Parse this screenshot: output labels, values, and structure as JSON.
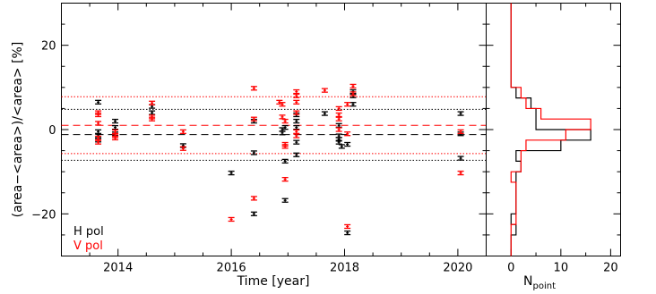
{
  "chart_data": [
    {
      "type": "scatter",
      "panel": "main",
      "xlabel": "Time [year]",
      "ylabel": "(area−<area>)/<area> [%]",
      "xlim": [
        2013.0,
        2020.5
      ],
      "ylim": [
        -30,
        30
      ],
      "xticks": [
        2014,
        2016,
        2018,
        2020
      ],
      "yticks": [
        -20,
        0,
        20
      ],
      "legend": {
        "placement": "bottom-left",
        "entries": [
          "H pol",
          "V pol"
        ]
      },
      "colors": {
        "H": "#000000",
        "V": "#ff0000"
      },
      "reference_lines": [
        {
          "series": "H pol",
          "style": "dashed",
          "y": -1.2
        },
        {
          "series": "V pol",
          "style": "dashed",
          "y": 1.0
        },
        {
          "series": "H pol",
          "style": "dotted",
          "y": 4.8
        },
        {
          "series": "H pol",
          "style": "dotted",
          "y": -7.3
        },
        {
          "series": "V pol",
          "style": "dotted",
          "y": 7.8
        },
        {
          "series": "V pol",
          "style": "dotted",
          "y": -5.7
        }
      ],
      "series": [
        {
          "name": "H pol",
          "points": [
            [
              2013.65,
              6.5
            ],
            [
              2013.65,
              -0.5
            ],
            [
              2013.65,
              -1.5
            ],
            [
              2013.65,
              -2.5
            ],
            [
              2013.95,
              2.0
            ],
            [
              2013.95,
              0.5
            ],
            [
              2013.95,
              -1.0
            ],
            [
              2014.6,
              4.0
            ],
            [
              2014.6,
              5.5
            ],
            [
              2015.15,
              -3.8
            ],
            [
              2016.0,
              -10.3
            ],
            [
              2016.4,
              -5.5
            ],
            [
              2016.4,
              -20.0
            ],
            [
              2016.4,
              2.0
            ],
            [
              2016.9,
              0.0
            ],
            [
              2016.9,
              -0.8
            ],
            [
              2016.95,
              -16.8
            ],
            [
              2016.95,
              -7.5
            ],
            [
              2016.95,
              0.5
            ],
            [
              2017.15,
              3.5
            ],
            [
              2017.15,
              2.0
            ],
            [
              2017.15,
              0.5
            ],
            [
              2017.15,
              -3.0
            ],
            [
              2017.15,
              -6.0
            ],
            [
              2017.65,
              3.8
            ],
            [
              2017.9,
              -1.5
            ],
            [
              2017.9,
              -2.3
            ],
            [
              2017.9,
              -3.0
            ],
            [
              2017.9,
              1.0
            ],
            [
              2017.95,
              -4.0
            ],
            [
              2018.05,
              -24.5
            ],
            [
              2018.05,
              -3.5
            ],
            [
              2018.15,
              9.0
            ],
            [
              2018.15,
              8.0
            ],
            [
              2018.15,
              6.0
            ],
            [
              2020.05,
              3.8
            ],
            [
              2020.05,
              -6.8
            ],
            [
              2020.05,
              -1.0
            ]
          ]
        },
        {
          "name": "V pol",
          "points": [
            [
              2013.65,
              4.0
            ],
            [
              2013.65,
              3.5
            ],
            [
              2013.65,
              1.5
            ],
            [
              2013.65,
              -2.0
            ],
            [
              2013.65,
              -3.0
            ],
            [
              2013.95,
              -0.5
            ],
            [
              2013.95,
              -1.5
            ],
            [
              2013.95,
              -2.0
            ],
            [
              2014.6,
              6.3
            ],
            [
              2014.6,
              3.0
            ],
            [
              2014.6,
              2.5
            ],
            [
              2015.15,
              -0.5
            ],
            [
              2015.15,
              -4.5
            ],
            [
              2016.0,
              -21.3
            ],
            [
              2016.4,
              9.8
            ],
            [
              2016.4,
              2.5
            ],
            [
              2016.4,
              -16.3
            ],
            [
              2016.85,
              6.5
            ],
            [
              2016.9,
              6.0
            ],
            [
              2016.9,
              3.0
            ],
            [
              2016.95,
              2.0
            ],
            [
              2016.95,
              -3.5
            ],
            [
              2016.95,
              -4.0
            ],
            [
              2016.95,
              -11.8
            ],
            [
              2017.15,
              9.0
            ],
            [
              2017.15,
              8.0
            ],
            [
              2017.15,
              6.5
            ],
            [
              2017.15,
              4.0
            ],
            [
              2017.15,
              -0.5
            ],
            [
              2017.15,
              -1.5
            ],
            [
              2017.65,
              9.3
            ],
            [
              2017.9,
              5.0
            ],
            [
              2017.9,
              3.5
            ],
            [
              2017.9,
              2.5
            ],
            [
              2017.9,
              0.0
            ],
            [
              2018.05,
              6.0
            ],
            [
              2018.05,
              -23.0
            ],
            [
              2018.05,
              -1.0
            ],
            [
              2018.15,
              10.3
            ],
            [
              2018.15,
              8.5
            ],
            [
              2020.05,
              -10.3
            ],
            [
              2020.05,
              -0.5
            ]
          ]
        }
      ]
    },
    {
      "type": "histogram",
      "panel": "side",
      "orientation": "horizontal",
      "xlabel": "N",
      "xlabel_sub": "point",
      "xlim": [
        -5,
        22
      ],
      "ylim": [
        -30,
        30
      ],
      "xticks": [
        0,
        10,
        20
      ],
      "colors": {
        "H": "#000000",
        "V": "#ff0000"
      },
      "bin_edges": [
        -30,
        -27.5,
        -25,
        -22.5,
        -20,
        -17.5,
        -15,
        -12.5,
        -10,
        -7.5,
        -5,
        -2.5,
        0,
        2.5,
        5,
        7.5,
        10,
        12.5,
        15,
        17.5,
        20,
        22.5,
        25,
        27.5,
        30
      ],
      "series": [
        {
          "name": "H pol",
          "counts": [
            0,
            0,
            1,
            0,
            1,
            1,
            1,
            1,
            2,
            1,
            10,
            16,
            5,
            5,
            4,
            1,
            0,
            0,
            0,
            0,
            0,
            0,
            0,
            0
          ]
        },
        {
          "name": "V pol",
          "counts": [
            0,
            0,
            0,
            1,
            1,
            1,
            1,
            0,
            2,
            2,
            3,
            11,
            16,
            6,
            3,
            2,
            0,
            0,
            0,
            0,
            0,
            0,
            0,
            0
          ]
        }
      ]
    }
  ],
  "legend": {
    "h_label": "H pol",
    "v_label": "V pol"
  },
  "axes": {
    "main_xlabel": "Time [year]",
    "main_ylabel": "(area−<area>)/<area> [%]",
    "side_xlabel": "N",
    "side_xlabel_sub": "point"
  }
}
